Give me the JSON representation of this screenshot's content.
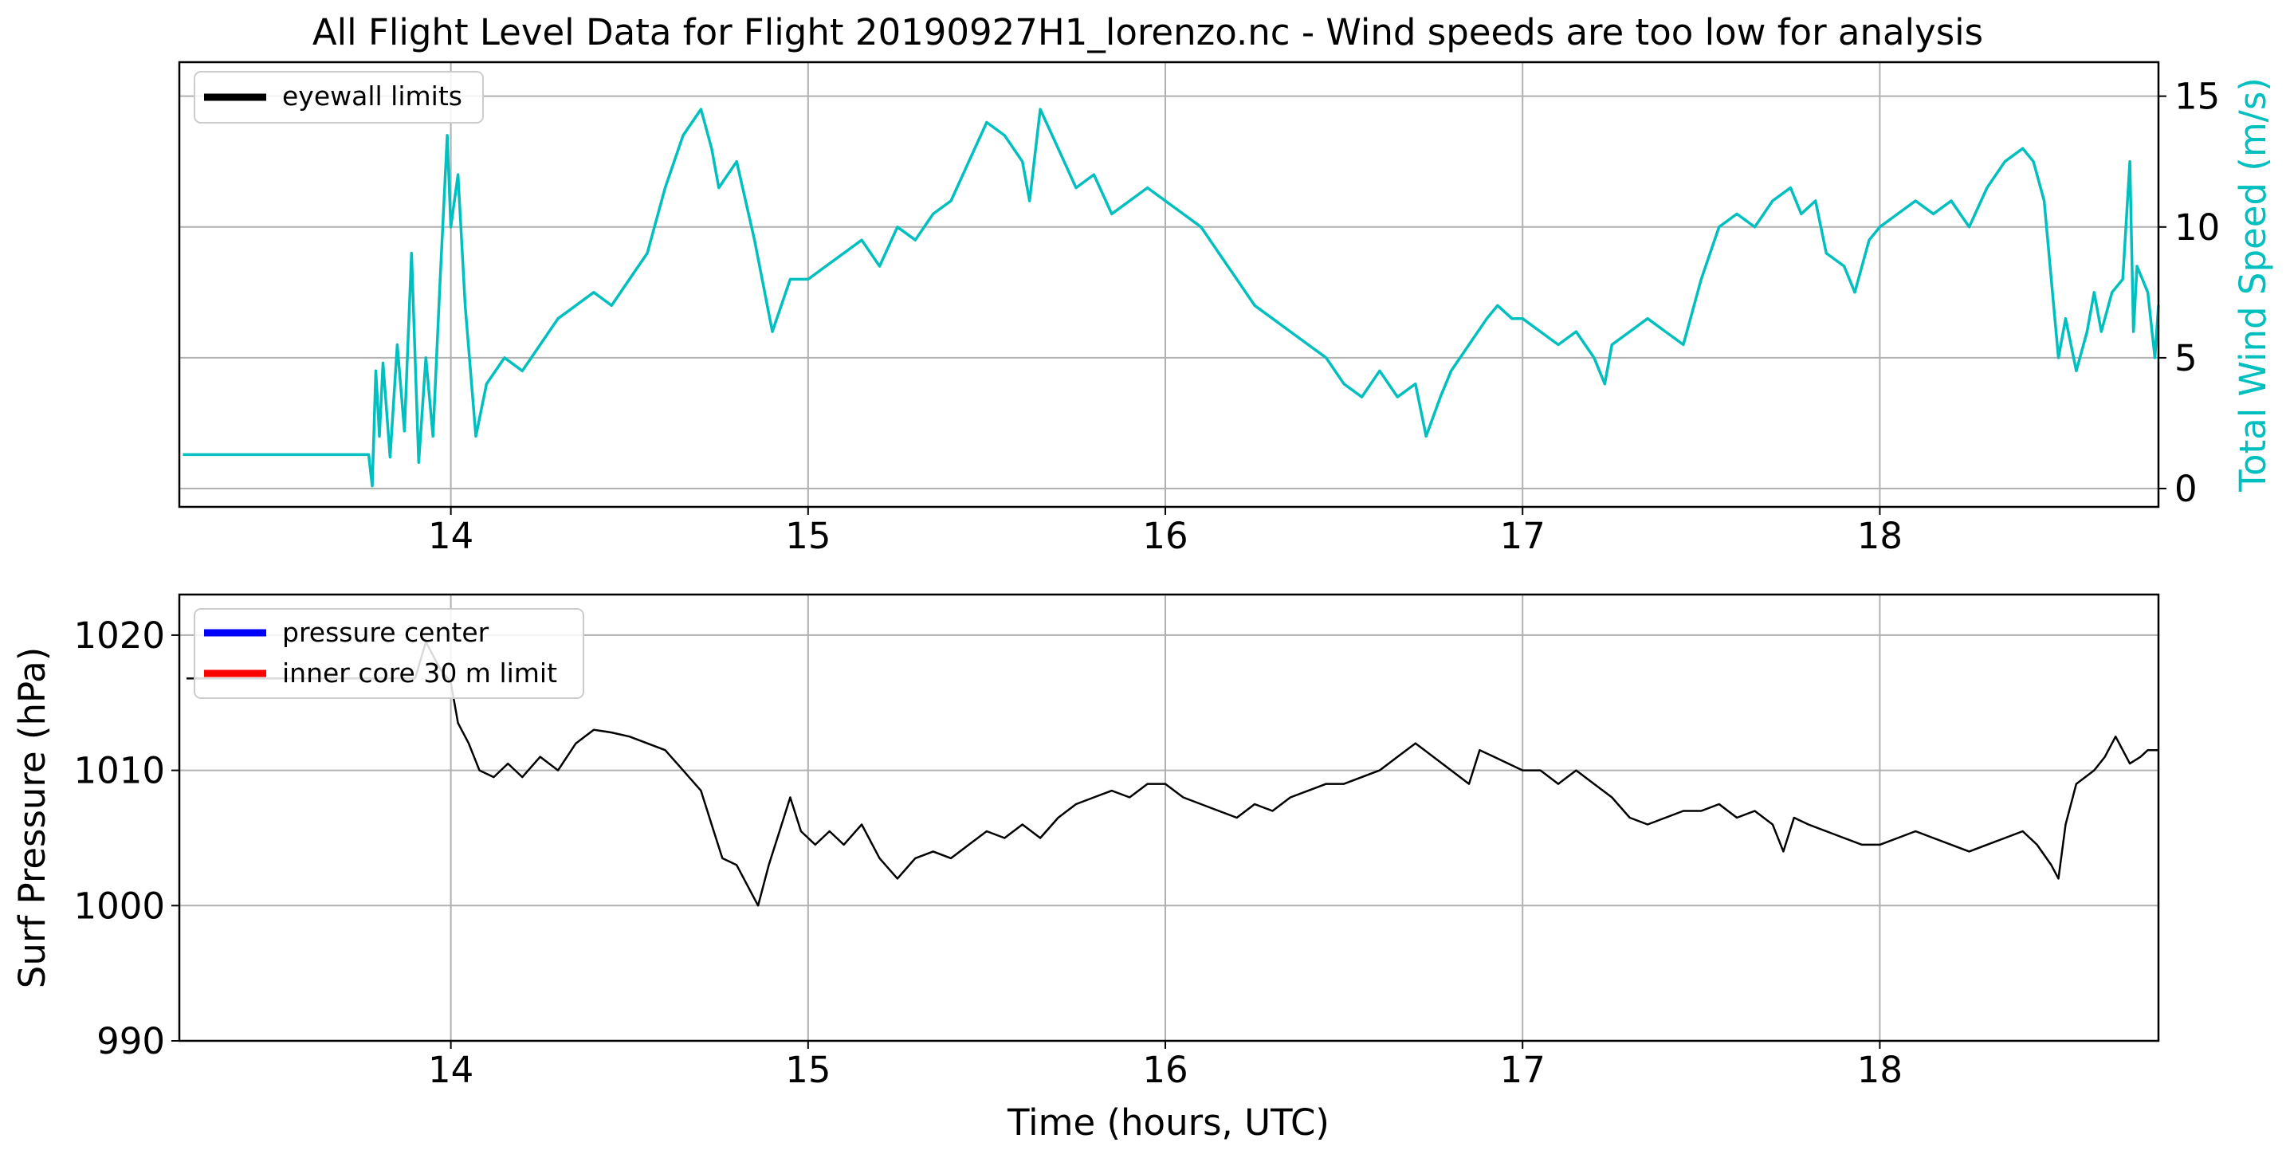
{
  "figure": {
    "title": "All Flight Level Data for Flight 20190927H1_lorenzo.nc - Wind speeds are too low for analysis"
  },
  "colors": {
    "wind": "#00bfbf",
    "pressure": "#000000",
    "grid": "#b0b0b0",
    "pressure_center": "#0000ff",
    "inner_core_limit": "#ff0000",
    "eyewall_limits": "#000000"
  },
  "chart_data": [
    {
      "type": "line",
      "panel": "top",
      "title": "All Flight Level Data for Flight 20190927H1_lorenzo.nc - Wind speeds are too low for analysis",
      "xlabel": "",
      "ylabel_right": "Total Wind Speed (m/s)",
      "xlim": [
        13.24,
        18.78
      ],
      "ylim": [
        -0.7,
        16.3
      ],
      "xticks": [
        14,
        15,
        16,
        17,
        18
      ],
      "yticks": [
        0,
        5,
        10,
        15
      ],
      "grid": true,
      "legend": {
        "position": "upper-left",
        "entries": [
          "eyewall limits"
        ]
      },
      "series": [
        {
          "name": "Total Wind Speed",
          "color": "#00bfbf",
          "points": [
            [
              13.25,
              1.3
            ],
            [
              13.77,
              1.3
            ],
            [
              13.78,
              0.1
            ],
            [
              13.79,
              4.5
            ],
            [
              13.8,
              2.0
            ],
            [
              13.81,
              4.8
            ],
            [
              13.83,
              1.2
            ],
            [
              13.85,
              5.5
            ],
            [
              13.87,
              2.2
            ],
            [
              13.89,
              9.0
            ],
            [
              13.91,
              1.0
            ],
            [
              13.93,
              5.0
            ],
            [
              13.95,
              2.0
            ],
            [
              13.97,
              8.0
            ],
            [
              13.99,
              13.5
            ],
            [
              14.0,
              10.0
            ],
            [
              14.02,
              12.0
            ],
            [
              14.04,
              7.0
            ],
            [
              14.07,
              2.0
            ],
            [
              14.1,
              4.0
            ],
            [
              14.15,
              5.0
            ],
            [
              14.2,
              4.5
            ],
            [
              14.25,
              5.5
            ],
            [
              14.3,
              6.5
            ],
            [
              14.35,
              7.0
            ],
            [
              14.4,
              7.5
            ],
            [
              14.45,
              7.0
            ],
            [
              14.5,
              8.0
            ],
            [
              14.55,
              9.0
            ],
            [
              14.6,
              11.5
            ],
            [
              14.65,
              13.5
            ],
            [
              14.7,
              14.5
            ],
            [
              14.73,
              13.0
            ],
            [
              14.75,
              11.5
            ],
            [
              14.8,
              12.5
            ],
            [
              14.85,
              9.5
            ],
            [
              14.9,
              6.0
            ],
            [
              14.95,
              8.0
            ],
            [
              15.0,
              8.0
            ],
            [
              15.05,
              8.5
            ],
            [
              15.1,
              9.0
            ],
            [
              15.15,
              9.5
            ],
            [
              15.2,
              8.5
            ],
            [
              15.25,
              10.0
            ],
            [
              15.3,
              9.5
            ],
            [
              15.35,
              10.5
            ],
            [
              15.4,
              11.0
            ],
            [
              15.45,
              12.5
            ],
            [
              15.5,
              14.0
            ],
            [
              15.55,
              13.5
            ],
            [
              15.6,
              12.5
            ],
            [
              15.62,
              11.0
            ],
            [
              15.65,
              14.5
            ],
            [
              15.7,
              13.0
            ],
            [
              15.75,
              11.5
            ],
            [
              15.8,
              12.0
            ],
            [
              15.85,
              10.5
            ],
            [
              15.9,
              11.0
            ],
            [
              15.95,
              11.5
            ],
            [
              16.0,
              11.0
            ],
            [
              16.05,
              10.5
            ],
            [
              16.1,
              10.0
            ],
            [
              16.15,
              9.0
            ],
            [
              16.2,
              8.0
            ],
            [
              16.25,
              7.0
            ],
            [
              16.3,
              6.5
            ],
            [
              16.35,
              6.0
            ],
            [
              16.4,
              5.5
            ],
            [
              16.45,
              5.0
            ],
            [
              16.5,
              4.0
            ],
            [
              16.55,
              3.5
            ],
            [
              16.6,
              4.5
            ],
            [
              16.65,
              3.5
            ],
            [
              16.7,
              4.0
            ],
            [
              16.73,
              2.0
            ],
            [
              16.77,
              3.5
            ],
            [
              16.8,
              4.5
            ],
            [
              16.85,
              5.5
            ],
            [
              16.9,
              6.5
            ],
            [
              16.93,
              7.0
            ],
            [
              16.97,
              6.5
            ],
            [
              17.0,
              6.5
            ],
            [
              17.05,
              6.0
            ],
            [
              17.1,
              5.5
            ],
            [
              17.15,
              6.0
            ],
            [
              17.2,
              5.0
            ],
            [
              17.23,
              4.0
            ],
            [
              17.25,
              5.5
            ],
            [
              17.3,
              6.0
            ],
            [
              17.35,
              6.5
            ],
            [
              17.4,
              6.0
            ],
            [
              17.45,
              5.5
            ],
            [
              17.5,
              8.0
            ],
            [
              17.55,
              10.0
            ],
            [
              17.6,
              10.5
            ],
            [
              17.65,
              10.0
            ],
            [
              17.7,
              11.0
            ],
            [
              17.75,
              11.5
            ],
            [
              17.78,
              10.5
            ],
            [
              17.82,
              11.0
            ],
            [
              17.85,
              9.0
            ],
            [
              17.9,
              8.5
            ],
            [
              17.93,
              7.5
            ],
            [
              17.97,
              9.5
            ],
            [
              18.0,
              10.0
            ],
            [
              18.05,
              10.5
            ],
            [
              18.1,
              11.0
            ],
            [
              18.15,
              10.5
            ],
            [
              18.2,
              11.0
            ],
            [
              18.25,
              10.0
            ],
            [
              18.3,
              11.5
            ],
            [
              18.35,
              12.5
            ],
            [
              18.4,
              13.0
            ],
            [
              18.43,
              12.5
            ],
            [
              18.46,
              11.0
            ],
            [
              18.48,
              8.0
            ],
            [
              18.5,
              5.0
            ],
            [
              18.52,
              6.5
            ],
            [
              18.55,
              4.5
            ],
            [
              18.58,
              6.0
            ],
            [
              18.6,
              7.5
            ],
            [
              18.62,
              6.0
            ],
            [
              18.65,
              7.5
            ],
            [
              18.68,
              8.0
            ],
            [
              18.7,
              12.5
            ],
            [
              18.71,
              6.0
            ],
            [
              18.72,
              8.5
            ],
            [
              18.75,
              7.5
            ],
            [
              18.77,
              5.0
            ],
            [
              18.78,
              7.0
            ]
          ]
        }
      ]
    },
    {
      "type": "line",
      "panel": "bottom",
      "title": "",
      "xlabel": "Time (hours, UTC)",
      "ylabel": "Surf Pressure (hPa)",
      "xlim": [
        13.24,
        18.78
      ],
      "ylim": [
        990,
        1023
      ],
      "xticks": [
        14,
        15,
        16,
        17,
        18
      ],
      "yticks": [
        990,
        1000,
        1010,
        1020
      ],
      "grid": true,
      "legend": {
        "position": "upper-left",
        "entries": [
          "pressure center",
          "inner core 30 m limit"
        ]
      },
      "series": [
        {
          "name": "Surf Pressure",
          "color": "#000000",
          "points": [
            [
              13.26,
              1016.8
            ],
            [
              13.9,
              1016.8
            ],
            [
              13.93,
              1019.5
            ],
            [
              13.97,
              1017.5
            ],
            [
              14.0,
              1016.5
            ],
            [
              14.02,
              1013.5
            ],
            [
              14.05,
              1012.0
            ],
            [
              14.08,
              1010.0
            ],
            [
              14.12,
              1009.5
            ],
            [
              14.16,
              1010.5
            ],
            [
              14.2,
              1009.5
            ],
            [
              14.25,
              1011.0
            ],
            [
              14.3,
              1010.0
            ],
            [
              14.35,
              1012.0
            ],
            [
              14.4,
              1013.0
            ],
            [
              14.45,
              1012.8
            ],
            [
              14.5,
              1012.5
            ],
            [
              14.55,
              1012.0
            ],
            [
              14.6,
              1011.5
            ],
            [
              14.65,
              1010.0
            ],
            [
              14.7,
              1008.5
            ],
            [
              14.73,
              1006.0
            ],
            [
              14.76,
              1003.5
            ],
            [
              14.8,
              1003.0
            ],
            [
              14.83,
              1001.5
            ],
            [
              14.86,
              1000.0
            ],
            [
              14.89,
              1003.0
            ],
            [
              14.92,
              1005.5
            ],
            [
              14.95,
              1008.0
            ],
            [
              14.98,
              1005.5
            ],
            [
              15.02,
              1004.5
            ],
            [
              15.06,
              1005.5
            ],
            [
              15.1,
              1004.5
            ],
            [
              15.15,
              1006.0
            ],
            [
              15.2,
              1003.5
            ],
            [
              15.25,
              1002.0
            ],
            [
              15.3,
              1003.5
            ],
            [
              15.35,
              1004.0
            ],
            [
              15.4,
              1003.5
            ],
            [
              15.45,
              1004.5
            ],
            [
              15.5,
              1005.5
            ],
            [
              15.55,
              1005.0
            ],
            [
              15.6,
              1006.0
            ],
            [
              15.65,
              1005.0
            ],
            [
              15.7,
              1006.5
            ],
            [
              15.75,
              1007.5
            ],
            [
              15.8,
              1008.0
            ],
            [
              15.85,
              1008.5
            ],
            [
              15.9,
              1008.0
            ],
            [
              15.95,
              1009.0
            ],
            [
              16.0,
              1009.0
            ],
            [
              16.05,
              1008.0
            ],
            [
              16.1,
              1007.5
            ],
            [
              16.15,
              1007.0
            ],
            [
              16.2,
              1006.5
            ],
            [
              16.25,
              1007.5
            ],
            [
              16.3,
              1007.0
            ],
            [
              16.35,
              1008.0
            ],
            [
              16.4,
              1008.5
            ],
            [
              16.45,
              1009.0
            ],
            [
              16.5,
              1009.0
            ],
            [
              16.55,
              1009.5
            ],
            [
              16.6,
              1010.0
            ],
            [
              16.65,
              1011.0
            ],
            [
              16.7,
              1012.0
            ],
            [
              16.75,
              1011.0
            ],
            [
              16.8,
              1010.0
            ],
            [
              16.85,
              1009.0
            ],
            [
              16.88,
              1011.5
            ],
            [
              16.92,
              1011.0
            ],
            [
              16.96,
              1010.5
            ],
            [
              17.0,
              1010.0
            ],
            [
              17.05,
              1010.0
            ],
            [
              17.1,
              1009.0
            ],
            [
              17.15,
              1010.0
            ],
            [
              17.2,
              1009.0
            ],
            [
              17.25,
              1008.0
            ],
            [
              17.3,
              1006.5
            ],
            [
              17.35,
              1006.0
            ],
            [
              17.4,
              1006.5
            ],
            [
              17.45,
              1007.0
            ],
            [
              17.5,
              1007.0
            ],
            [
              17.55,
              1007.5
            ],
            [
              17.6,
              1006.5
            ],
            [
              17.65,
              1007.0
            ],
            [
              17.7,
              1006.0
            ],
            [
              17.73,
              1004.0
            ],
            [
              17.76,
              1006.5
            ],
            [
              17.8,
              1006.0
            ],
            [
              17.85,
              1005.5
            ],
            [
              17.9,
              1005.0
            ],
            [
              17.95,
              1004.5
            ],
            [
              18.0,
              1004.5
            ],
            [
              18.05,
              1005.0
            ],
            [
              18.1,
              1005.5
            ],
            [
              18.15,
              1005.0
            ],
            [
              18.2,
              1004.5
            ],
            [
              18.25,
              1004.0
            ],
            [
              18.3,
              1004.5
            ],
            [
              18.35,
              1005.0
            ],
            [
              18.4,
              1005.5
            ],
            [
              18.44,
              1004.5
            ],
            [
              18.48,
              1003.0
            ],
            [
              18.5,
              1002.0
            ],
            [
              18.52,
              1006.0
            ],
            [
              18.55,
              1009.0
            ],
            [
              18.6,
              1010.0
            ],
            [
              18.63,
              1011.0
            ],
            [
              18.66,
              1012.5
            ],
            [
              18.7,
              1010.5
            ],
            [
              18.73,
              1011.0
            ],
            [
              18.75,
              1011.5
            ],
            [
              18.78,
              1011.5
            ]
          ]
        }
      ]
    }
  ]
}
